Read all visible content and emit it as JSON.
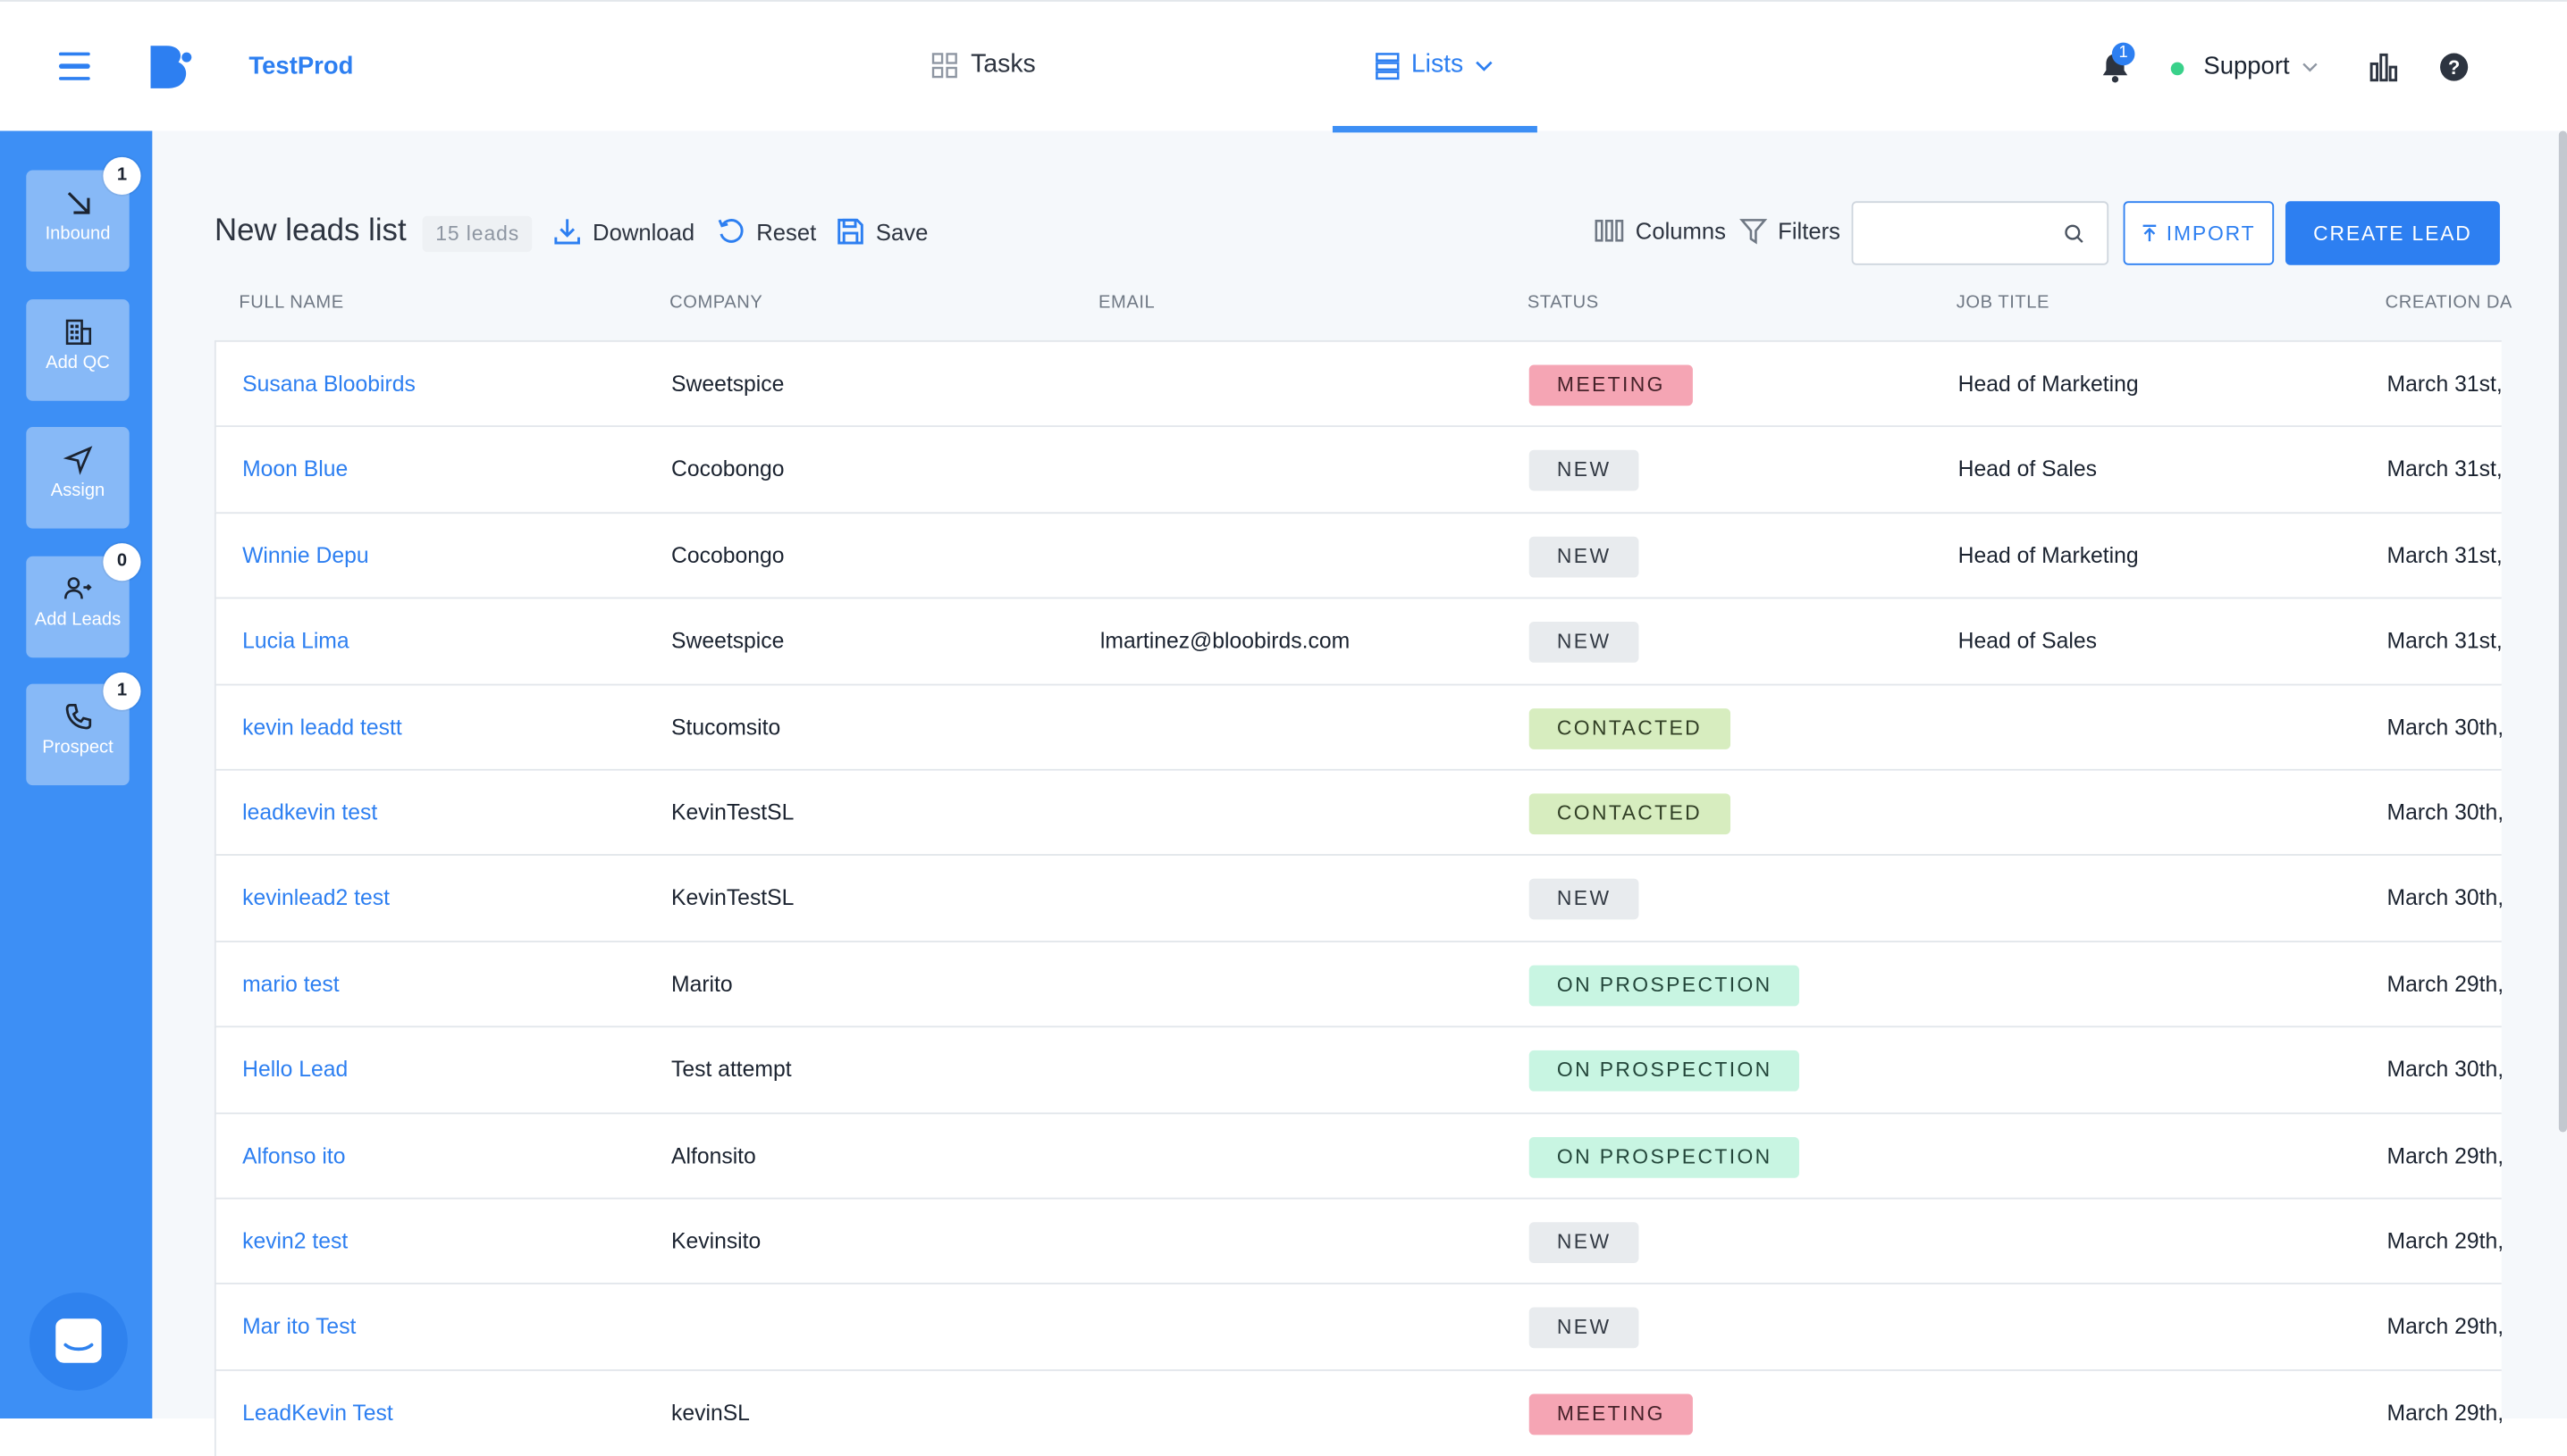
{
  "header": {
    "app_name": "TestProd",
    "nav": {
      "tasks": "Tasks",
      "lists": "Lists"
    },
    "notification_count": "1",
    "user": "Support"
  },
  "sidebar": {
    "items": [
      {
        "label": "Inbound",
        "badge": "1",
        "icon": "arrow-down-right-icon"
      },
      {
        "label": "Add QC",
        "badge": "",
        "icon": "building-icon"
      },
      {
        "label": "Assign",
        "badge": "",
        "icon": "send-icon"
      },
      {
        "label": "Add Leads",
        "badge": "0",
        "icon": "add-user-icon"
      },
      {
        "label": "Prospect",
        "badge": "1",
        "icon": "phone-icon"
      }
    ]
  },
  "toolbar": {
    "title": "New leads list",
    "count": "15 leads",
    "download": "Download",
    "reset": "Reset",
    "save": "Save",
    "columns": "Columns",
    "filters": "Filters",
    "search_placeholder": "",
    "import": "IMPORT",
    "create": "CREATE LEAD"
  },
  "table": {
    "headers": [
      "FULL NAME",
      "COMPANY",
      "EMAIL",
      "STATUS",
      "JOB TITLE",
      "CREATION DA"
    ],
    "rows": [
      {
        "name": "Susana Bloobirds",
        "company": "Sweetspice",
        "email": "",
        "status": "MEETING",
        "status_type": "meeting",
        "job": "Head of Marketing",
        "date": "March 31st,"
      },
      {
        "name": "Moon Blue",
        "company": "Cocobongo",
        "email": "",
        "status": "NEW",
        "status_type": "new",
        "job": "Head of Sales",
        "date": "March 31st,"
      },
      {
        "name": "Winnie Depu",
        "company": "Cocobongo",
        "email": "",
        "status": "NEW",
        "status_type": "new",
        "job": "Head of Marketing",
        "date": "March 31st,"
      },
      {
        "name": "Lucia Lima",
        "company": "Sweetspice",
        "email": "lmartinez@bloobirds.com",
        "status": "NEW",
        "status_type": "new",
        "job": "Head of Sales",
        "date": "March 31st,"
      },
      {
        "name": "kevin leadd testt",
        "company": "Stucomsito",
        "email": "",
        "status": "CONTACTED",
        "status_type": "contacted",
        "job": "",
        "date": "March 30th,"
      },
      {
        "name": "leadkevin test",
        "company": "KevinTestSL",
        "email": "",
        "status": "CONTACTED",
        "status_type": "contacted",
        "job": "",
        "date": "March 30th,"
      },
      {
        "name": "kevinlead2 test",
        "company": "KevinTestSL",
        "email": "",
        "status": "NEW",
        "status_type": "new",
        "job": "",
        "date": "March 30th,"
      },
      {
        "name": "mario test",
        "company": "Marito",
        "email": "",
        "status": "ON PROSPECTION",
        "status_type": "onprospection",
        "job": "",
        "date": "March 29th,"
      },
      {
        "name": "Hello Lead",
        "company": "Test attempt",
        "email": "",
        "status": "ON PROSPECTION",
        "status_type": "onprospection",
        "job": "",
        "date": "March 30th,"
      },
      {
        "name": "Alfonso ito",
        "company": "Alfonsito",
        "email": "",
        "status": "ON PROSPECTION",
        "status_type": "onprospection",
        "job": "",
        "date": "March 29th,"
      },
      {
        "name": "kevin2 test",
        "company": "Kevinsito",
        "email": "",
        "status": "NEW",
        "status_type": "new",
        "job": "",
        "date": "March 29th,"
      },
      {
        "name": "Mar ito Test",
        "company": "",
        "email": "",
        "status": "NEW",
        "status_type": "new",
        "job": "",
        "date": "March 29th,"
      },
      {
        "name": "LeadKevin Test",
        "company": "kevinSL",
        "email": "",
        "status": "MEETING",
        "status_type": "meeting",
        "job": "",
        "date": "March 29th,"
      }
    ]
  },
  "colors": {
    "accent": "#2d7ff1",
    "sidebar": "#3d8ff5",
    "meeting": "#f5a5b4",
    "new": "#e8ebee",
    "contacted": "#d7edbf",
    "onprospection": "#c8f5e2"
  }
}
